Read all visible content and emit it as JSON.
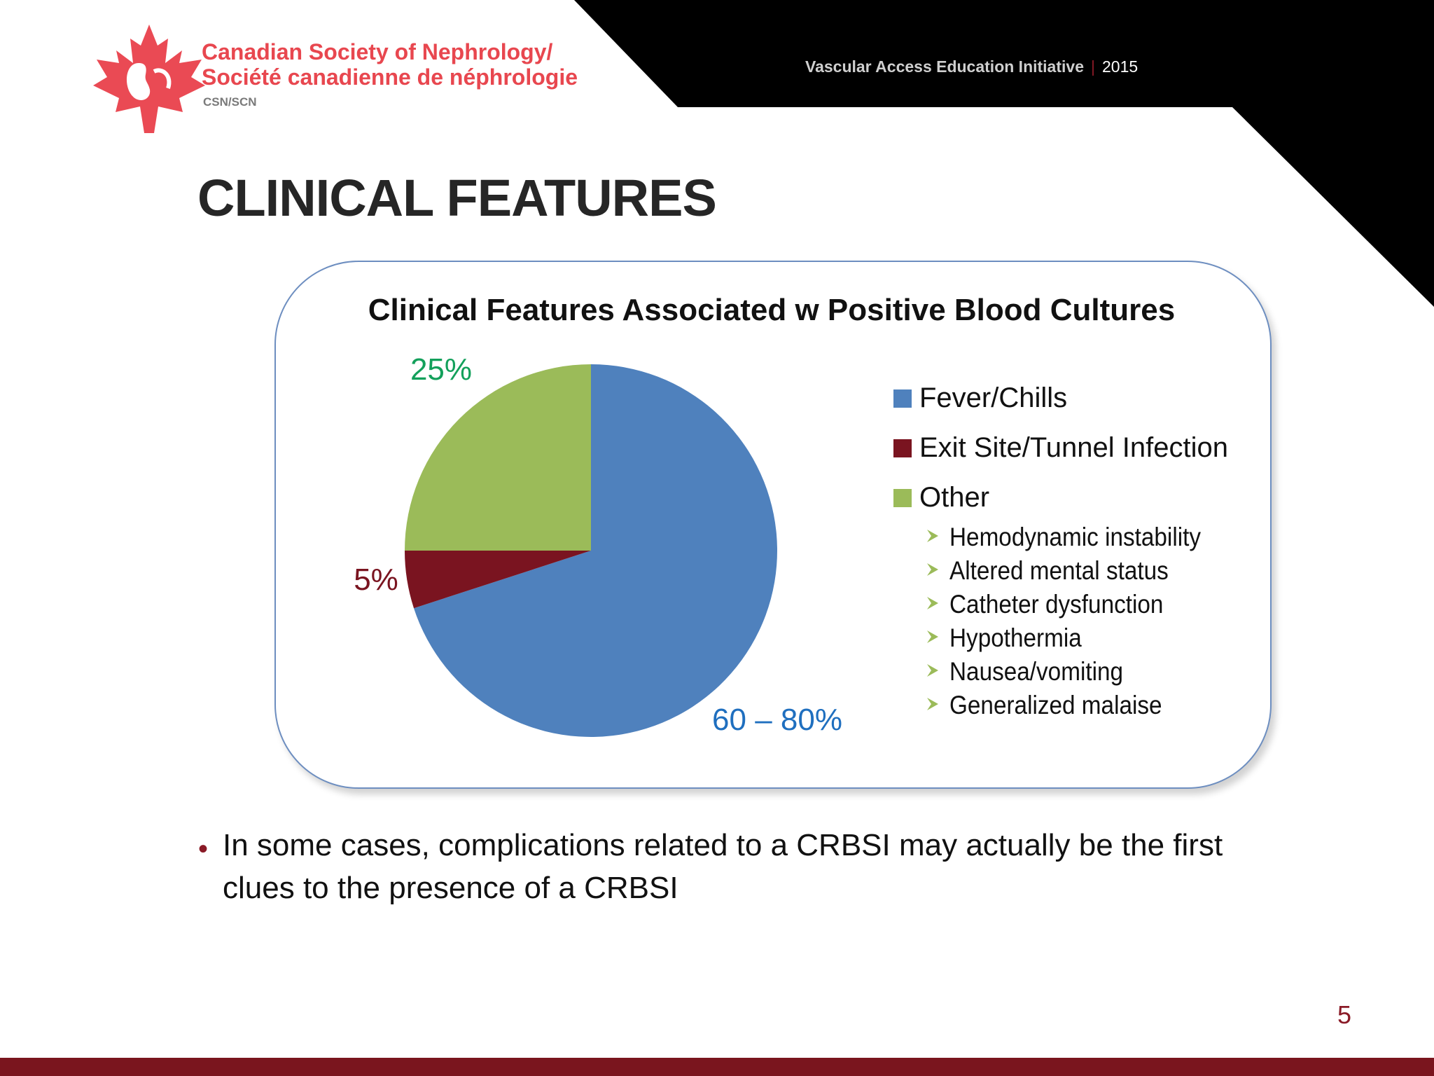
{
  "header": {
    "org_name_en": "Canadian Society of Nephrology/",
    "org_name_fr": "Société canadienne de néphrologie",
    "org_abbr": "CSN/SCN",
    "initiative": "Vascular Access Education Initiative",
    "separator": "|",
    "year": "2015"
  },
  "slide": {
    "title": "CLINICAL FEATURES",
    "bullet": "In some cases, complications related to a CRBSI may actually be the first clues to the presence of a CRBSI",
    "page_number": "5"
  },
  "colors": {
    "fever": "#4f81bd",
    "exit_site": "#7a1420",
    "other": "#9bbb59",
    "brand_red": "#e8474f",
    "footer": "#7a151e"
  },
  "chart_data": {
    "type": "pie",
    "title": "Clinical Features Associated w Positive Blood Cultures",
    "series": [
      {
        "name": "Fever/Chills",
        "value": 70,
        "label": "60 – 80%",
        "color": "#4f81bd",
        "label_color": "#1f6fbf"
      },
      {
        "name": "Exit Site/Tunnel Infection",
        "value": 5,
        "label": "5%",
        "color": "#7a1420",
        "label_color": "#7a1420"
      },
      {
        "name": "Other",
        "value": 25,
        "label": "25%",
        "color": "#9bbb59",
        "label_color": "#13a05b"
      }
    ],
    "legend_position": "right",
    "other_details": [
      "Hemodynamic instability",
      "Altered mental status",
      "Catheter dysfunction",
      "Hypothermia",
      "Nausea/vomiting",
      "Generalized malaise"
    ]
  }
}
